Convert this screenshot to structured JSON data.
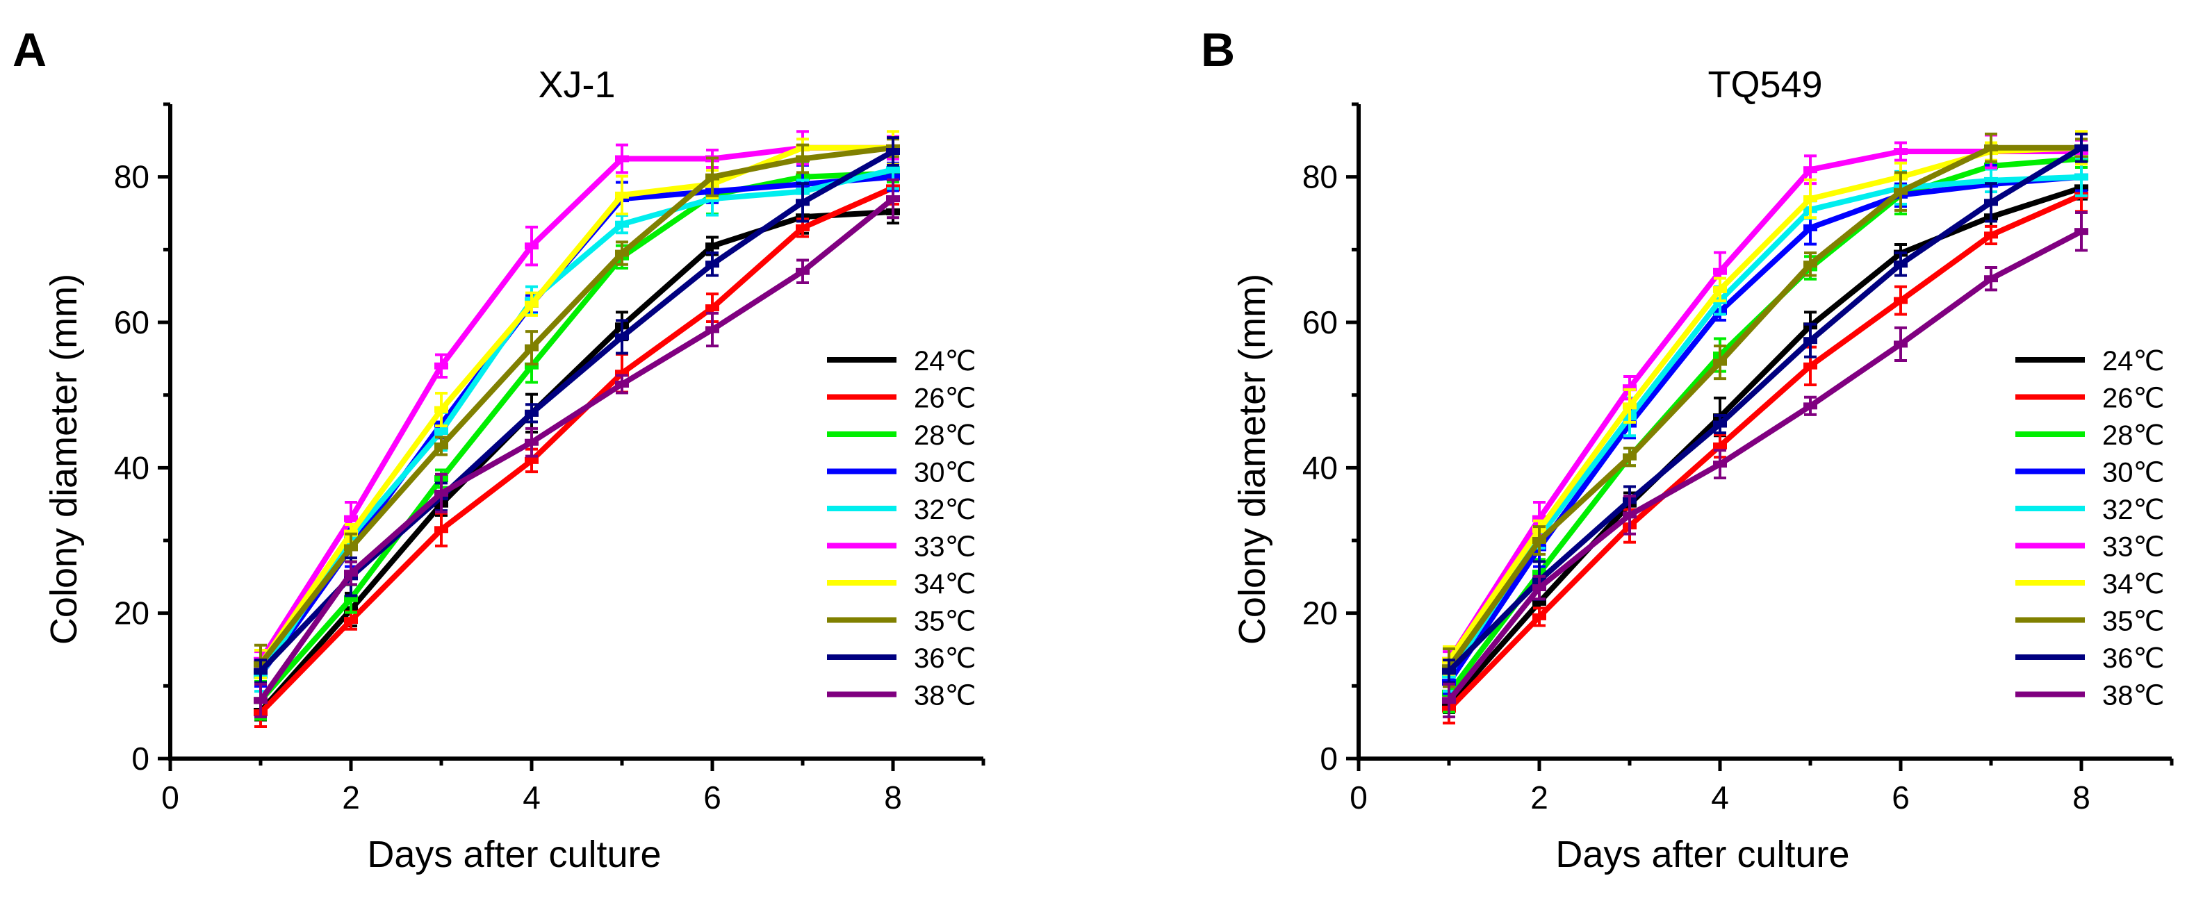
{
  "figure": {
    "series_colors": [
      "#000000",
      "#ff0000",
      "#00ee00",
      "#0000ff",
      "#00eeee",
      "#ff00ff",
      "#ffff00",
      "#808000",
      "#000080",
      "#800080"
    ]
  },
  "chart_data": [
    {
      "type": "line",
      "panel_label": "A",
      "title": "XJ-1",
      "xlabel": "Days after culture",
      "ylabel": "Colony diameter (mm)",
      "xlim": [
        0,
        9
      ],
      "ylim": [
        0,
        90
      ],
      "xticks": [
        0,
        2,
        4,
        6,
        8
      ],
      "yticks": [
        0,
        20,
        40,
        60,
        80
      ],
      "x": [
        1,
        2,
        3,
        4,
        5,
        6,
        7,
        8
      ],
      "legend_position": "right",
      "series": [
        {
          "name": "24℃",
          "values": [
            6.5,
            20.5,
            35,
            47.5,
            59.5,
            70.5,
            74.5,
            75.2
          ]
        },
        {
          "name": "26℃",
          "values": [
            6.3,
            19,
            31.5,
            41,
            53,
            62,
            73,
            78.5
          ]
        },
        {
          "name": "28℃",
          "values": [
            8,
            22,
            38.5,
            54,
            69,
            77.5,
            80,
            80.5
          ]
        },
        {
          "name": "30℃",
          "values": [
            11.5,
            29,
            46,
            62.5,
            77,
            78,
            79,
            80
          ]
        },
        {
          "name": "32℃",
          "values": [
            11.5,
            30.5,
            45,
            63,
            73.5,
            77,
            78,
            81
          ]
        },
        {
          "name": "33℃",
          "values": [
            13.5,
            33,
            54,
            70.5,
            82.5,
            82.5,
            84,
            84
          ]
        },
        {
          "name": "34℃",
          "values": [
            13,
            31,
            48,
            62.5,
            77.5,
            79,
            84,
            84
          ]
        },
        {
          "name": "35℃",
          "values": [
            13,
            29,
            43,
            56.5,
            69.5,
            80,
            82.5,
            84
          ]
        },
        {
          "name": "36℃",
          "values": [
            12,
            25,
            36,
            47.5,
            58,
            68,
            76.5,
            83.5
          ]
        },
        {
          "name": "38℃",
          "values": [
            8,
            25.5,
            36.5,
            43.5,
            51.5,
            59,
            67,
            77
          ]
        }
      ]
    },
    {
      "type": "line",
      "panel_label": "B",
      "title": "TQ549",
      "xlabel": "Days after culture",
      "ylabel": "Colony diameter (mm)",
      "xlim": [
        0,
        9
      ],
      "ylim": [
        0,
        90
      ],
      "xticks": [
        0,
        2,
        4,
        6,
        8
      ],
      "yticks": [
        0,
        20,
        40,
        60,
        80
      ],
      "x": [
        1,
        2,
        3,
        4,
        5,
        6,
        7,
        8
      ],
      "legend_position": "right",
      "series": [
        {
          "name": "24℃",
          "values": [
            7.5,
            21.5,
            35,
            47,
            59.5,
            69.5,
            74.5,
            78.5
          ]
        },
        {
          "name": "26℃",
          "values": [
            6.8,
            19.5,
            32,
            43,
            54,
            63,
            72,
            77.5
          ]
        },
        {
          "name": "28℃",
          "values": [
            9,
            25.5,
            41.5,
            55.5,
            67.5,
            77.5,
            81.5,
            82.5
          ]
        },
        {
          "name": "30℃",
          "values": [
            10.5,
            29,
            46,
            61.5,
            73,
            77.5,
            79,
            80
          ]
        },
        {
          "name": "32℃",
          "values": [
            11.5,
            30.5,
            47,
            63,
            75.5,
            78.5,
            79.5,
            80
          ]
        },
        {
          "name": "33℃",
          "values": [
            13.5,
            33,
            51,
            67,
            81,
            83.5,
            83.5,
            83.5
          ]
        },
        {
          "name": "34℃",
          "values": [
            13.5,
            31.5,
            48.5,
            64.5,
            77,
            80,
            83.5,
            84
          ]
        },
        {
          "name": "35℃",
          "values": [
            12.5,
            30,
            41.5,
            54.5,
            68,
            78,
            84,
            84
          ]
        },
        {
          "name": "36℃",
          "values": [
            12,
            24.5,
            35.5,
            46,
            57.5,
            68,
            76.5,
            84
          ]
        },
        {
          "name": "38℃",
          "values": [
            8,
            23.5,
            33.5,
            40.5,
            48.5,
            57,
            66,
            72.5
          ]
        }
      ]
    }
  ]
}
